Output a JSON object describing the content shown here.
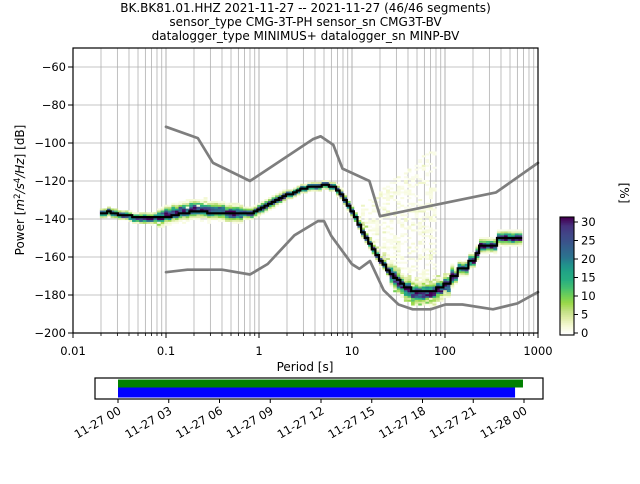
{
  "title": {
    "line1": "BK.BK81.01.HHZ   2021-11-27 -- 2021-11-27  (46/46 segments)",
    "line2": "sensor_type CMG-3T-PH sensor_sn CMG3T-BV",
    "line3": "datalogger_type MINIMUS+ datalogger_sn MINP-BV"
  },
  "chart_data": {
    "type": "heatmap",
    "title": "BK.BK81.01.HHZ 2021-11-27 -- 2021-11-27 (46/46 segments)",
    "xlabel": "Period [s]",
    "ylabel_parts": [
      {
        "t": "Power [",
        "style": "normal"
      },
      {
        "t": "m",
        "style": "italic"
      },
      {
        "t": "2",
        "style": "sup"
      },
      {
        "t": "/s",
        "style": "italic"
      },
      {
        "t": "4",
        "style": "sup"
      },
      {
        "t": "/Hz",
        "style": "italic"
      },
      {
        "t": "] [dB]",
        "style": "normal"
      }
    ],
    "x_axis": {
      "scale": "log",
      "min": 0.01,
      "max": 1000,
      "ticks": [
        0.01,
        0.1,
        1,
        10,
        100,
        1000
      ],
      "tick_labels": [
        "0.01",
        "0.1",
        "1",
        "10",
        "100",
        "1000"
      ]
    },
    "y_axis": {
      "min": -200,
      "max": -50,
      "ticks": [
        -60,
        -80,
        -100,
        -120,
        -140,
        -160,
        -180,
        -200
      ],
      "tick_labels": [
        "−60",
        "−80",
        "−100",
        "−120",
        "−140",
        "−160",
        "−180",
        "−200"
      ]
    },
    "grid": {
      "color": "#b0b0b0",
      "major_and_minor_x": true
    },
    "colorbar": {
      "label": "[%]",
      "min": 0,
      "max": 30,
      "ticks": [
        0,
        5,
        10,
        15,
        20,
        25,
        30
      ],
      "tick_labels": [
        "0",
        "5",
        "10",
        "15",
        "20",
        "25",
        "30"
      ],
      "stops_low_to_high": [
        "#ffffff",
        "#f6fad8",
        "#e0edaa",
        "#c2e084",
        "#9ad948",
        "#6ece58",
        "#44bf70",
        "#28ae80",
        "#21a585",
        "#21918c",
        "#2c728e",
        "#33638d",
        "#3b528b",
        "#414487",
        "#46327e",
        "#440154"
      ]
    },
    "mode_curve": [
      [
        0.0195,
        -137.4
      ],
      [
        0.022,
        -137.2
      ],
      [
        0.0235,
        -136.0
      ],
      [
        0.027,
        -136.8
      ],
      [
        0.032,
        -137.8
      ],
      [
        0.04,
        -138.4
      ],
      [
        0.055,
        -138.9
      ],
      [
        0.075,
        -139.3
      ],
      [
        0.1,
        -139.4
      ],
      [
        0.115,
        -138.6
      ],
      [
        0.14,
        -137.2
      ],
      [
        0.18,
        -136.5
      ],
      [
        0.26,
        -136.4
      ],
      [
        0.42,
        -136.9
      ],
      [
        0.6,
        -137.3
      ],
      [
        0.8,
        -137.0
      ],
      [
        0.95,
        -136.2
      ],
      [
        1.2,
        -133.2
      ],
      [
        1.7,
        -129.2
      ],
      [
        2.3,
        -126.2
      ],
      [
        3.0,
        -124.2
      ],
      [
        4.0,
        -122.8
      ],
      [
        5.0,
        -122.3
      ],
      [
        6.2,
        -122.6
      ],
      [
        7.0,
        -125.0
      ],
      [
        8.0,
        -128.3
      ],
      [
        9.0,
        -131.8
      ],
      [
        10.0,
        -135.8
      ],
      [
        11.5,
        -141.0
      ],
      [
        13.0,
        -146.5
      ],
      [
        14.8,
        -151.5
      ],
      [
        16.8,
        -155.8
      ],
      [
        19.0,
        -159.8
      ],
      [
        22.0,
        -164.0
      ],
      [
        26.0,
        -168.3
      ],
      [
        31.0,
        -172.0
      ],
      [
        37.0,
        -174.8
      ],
      [
        45.0,
        -177.0
      ],
      [
        55.0,
        -178.3
      ],
      [
        68.0,
        -178.3
      ],
      [
        82.0,
        -177.0
      ],
      [
        100.0,
        -173.8
      ],
      [
        125.0,
        -169.8
      ],
      [
        155.0,
        -166.2
      ],
      [
        190.0,
        -162.6
      ],
      [
        225.0,
        -159.0
      ],
      [
        235.0,
        -155.4
      ],
      [
        360.0,
        -155.2
      ],
      [
        380.0,
        -150.6
      ],
      [
        690.0,
        -150.4
      ]
    ],
    "noise_models": {
      "color": "#7e7e7e",
      "nhnm": [
        [
          0.1,
          -91.5
        ],
        [
          0.22,
          -97.4
        ],
        [
          0.32,
          -110.5
        ],
        [
          0.8,
          -120.0
        ],
        [
          3.8,
          -98.0
        ],
        [
          4.6,
          -96.5
        ],
        [
          6.3,
          -101.0
        ],
        [
          7.9,
          -113.5
        ],
        [
          15.4,
          -120.0
        ],
        [
          20.0,
          -138.5
        ],
        [
          354.8,
          -126.0
        ],
        [
          1000,
          -110.5
        ]
      ],
      "nlnm": [
        [
          0.1,
          -168.0
        ],
        [
          0.17,
          -166.7
        ],
        [
          0.4,
          -166.7
        ],
        [
          0.8,
          -169.2
        ],
        [
          1.24,
          -163.7
        ],
        [
          2.4,
          -148.6
        ],
        [
          4.3,
          -141.1
        ],
        [
          5.0,
          -141.1
        ],
        [
          6.0,
          -149.0
        ],
        [
          10.0,
          -163.8
        ],
        [
          12.0,
          -166.2
        ],
        [
          15.6,
          -162.1
        ],
        [
          21.9,
          -177.5
        ],
        [
          31.6,
          -185.0
        ],
        [
          45.0,
          -187.5
        ],
        [
          70.0,
          -187.5
        ],
        [
          101.0,
          -185.0
        ],
        [
          154.0,
          -185.0
        ],
        [
          328.0,
          -187.5
        ],
        [
          600.0,
          -184.4
        ],
        [
          1000,
          -178.5
        ]
      ]
    },
    "histogram": {
      "period_range": [
        0.0195,
        700
      ],
      "bins_per_decade": 26,
      "db_bin_width": 1,
      "max_percent": 30,
      "band_peak_percent": 29,
      "sigma_regions": [
        [
          0,
          0.05,
          1.1
        ],
        [
          0.05,
          0.08,
          1.3
        ],
        [
          0.08,
          0.7,
          2.0
        ],
        [
          0.7,
          2,
          1.3
        ],
        [
          2,
          6.5,
          1.0
        ],
        [
          6.5,
          25,
          1.2
        ],
        [
          25,
          120,
          2.6
        ],
        [
          120,
          1000,
          1.6
        ]
      ],
      "bias_regions": [
        [
          0.1,
          0.45,
          1.2
        ],
        [
          0.04,
          0.09,
          -0.6
        ],
        [
          30,
          110,
          -1.0
        ]
      ],
      "fan": {
        "period_range": [
          9.5,
          78
        ],
        "top_db_at_10s": -138,
        "top_db_slope_per_decade": -40,
        "density": 0.36
      },
      "cloud_above": {
        "period_range": [
          0.13,
          0.6
        ],
        "db_offsets": [
          3,
          7
        ],
        "density": 0.22
      },
      "sparse_below": {
        "period_range": [
          0.08,
          0.3
        ],
        "db_offsets": [
          -5,
          -3
        ],
        "density": 0.18
      },
      "minimum_widening": {
        "period_range": [
          28,
          115
        ],
        "below_offsets": [
          -7,
          -4
        ],
        "above_offsets": [
          4,
          6
        ],
        "density": 0.45
      }
    },
    "coverage": {
      "tick_labels": [
        "11-27 00",
        "11-27 03",
        "11-27 06",
        "11-27 09",
        "11-27 12",
        "11-27 15",
        "11-27 18",
        "11-27 21",
        "11-28 00"
      ],
      "data_bar": {
        "color": "#008000",
        "start_frac": 0.0,
        "end_frac": 0.9975
      },
      "segment_bar": {
        "color": "#0000ff",
        "start_frac": 0.0,
        "end_frac": 0.978
      }
    }
  }
}
